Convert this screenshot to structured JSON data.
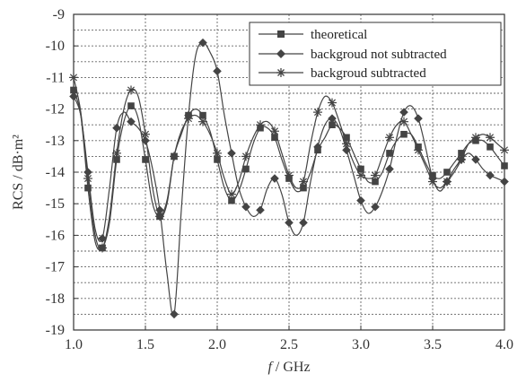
{
  "chart_data": {
    "type": "line",
    "title": "",
    "xlabel_italic": "f",
    "xlabel_rest": " / GHz",
    "ylabel": "RCS / dB·m²",
    "xlim": [
      1.0,
      4.0
    ],
    "ylim": [
      -19,
      -9
    ],
    "x_ticks": [
      "1.0",
      "1.5",
      "2.0",
      "2.5",
      "3.0",
      "3.5",
      "4.0"
    ],
    "y_ticks": [
      "-9",
      "-10",
      "-11",
      "-12",
      "-13",
      "-14",
      "-15",
      "-16",
      "-17",
      "-18",
      "-19"
    ],
    "grid": true,
    "legend_position": "top-right",
    "legend": [
      "theoretical",
      "backgroud not subtracted",
      "backgroud subtracted"
    ],
    "colors": {
      "line": "#444444",
      "frame": "#333333",
      "grid": "#666666"
    },
    "series": [
      {
        "name": "theoretical",
        "marker": "square",
        "x": [
          1.0,
          1.05,
          1.1,
          1.15,
          1.2,
          1.25,
          1.3,
          1.35,
          1.4,
          1.45,
          1.5,
          1.55,
          1.6,
          1.65,
          1.7,
          1.75,
          1.8,
          1.85,
          1.9,
          1.95,
          2.0,
          2.05,
          2.1,
          2.15,
          2.2,
          2.25,
          2.3,
          2.35,
          2.4,
          2.45,
          2.5,
          2.55,
          2.6,
          2.65,
          2.7,
          2.75,
          2.8,
          2.85,
          2.9,
          2.95,
          3.0,
          3.05,
          3.1,
          3.15,
          3.2,
          3.25,
          3.3,
          3.35,
          3.4,
          3.45,
          3.5,
          3.55,
          3.6,
          3.65,
          3.7,
          3.75,
          3.8,
          3.85,
          3.9,
          3.95,
          4.0
        ],
        "y": [
          -11.4,
          -12.2,
          -14.5,
          -16.2,
          -16.4,
          -15.6,
          -13.6,
          -12.4,
          -11.9,
          -12.3,
          -13.6,
          -15.0,
          -15.4,
          -14.9,
          -13.5,
          -12.8,
          -12.2,
          -12.0,
          -12.2,
          -12.7,
          -13.6,
          -14.5,
          -14.9,
          -14.6,
          -13.9,
          -13.1,
          -12.6,
          -12.6,
          -12.9,
          -13.6,
          -14.2,
          -14.6,
          -14.5,
          -14.0,
          -13.3,
          -12.9,
          -12.5,
          -12.6,
          -12.9,
          -13.4,
          -13.9,
          -14.3,
          -14.3,
          -14.0,
          -13.4,
          -13.0,
          -12.8,
          -12.8,
          -13.2,
          -13.7,
          -14.1,
          -14.2,
          -14.0,
          -13.7,
          -13.4,
          -13.1,
          -13.0,
          -13.0,
          -13.2,
          -13.5,
          -13.8
        ]
      },
      {
        "name": "backgroud not subtracted",
        "marker": "diamond",
        "x": [
          1.0,
          1.05,
          1.1,
          1.15,
          1.2,
          1.25,
          1.3,
          1.35,
          1.4,
          1.45,
          1.5,
          1.55,
          1.6,
          1.65,
          1.7,
          1.75,
          1.8,
          1.85,
          1.9,
          1.95,
          2.0,
          2.05,
          2.1,
          2.15,
          2.2,
          2.25,
          2.3,
          2.35,
          2.4,
          2.45,
          2.5,
          2.55,
          2.6,
          2.65,
          2.7,
          2.75,
          2.8,
          2.85,
          2.9,
          2.95,
          3.0,
          3.05,
          3.1,
          3.15,
          3.2,
          3.25,
          3.3,
          3.35,
          3.4,
          3.45,
          3.5,
          3.55,
          3.6,
          3.65,
          3.7,
          3.75,
          3.8,
          3.85,
          3.9,
          3.95,
          4.0
        ],
        "y": [
          -11.6,
          -12.2,
          -14.0,
          -15.8,
          -16.1,
          -14.5,
          -12.6,
          -12.1,
          -12.4,
          -12.6,
          -13.0,
          -13.9,
          -15.2,
          -17.2,
          -18.5,
          -15.2,
          -12.2,
          -10.3,
          -9.9,
          -10.2,
          -10.8,
          -12.2,
          -13.4,
          -14.5,
          -15.1,
          -15.4,
          -15.2,
          -14.5,
          -14.2,
          -14.7,
          -15.6,
          -16.0,
          -15.6,
          -14.3,
          -13.2,
          -12.5,
          -12.3,
          -12.6,
          -13.3,
          -14.1,
          -14.9,
          -15.3,
          -15.1,
          -14.6,
          -13.9,
          -12.9,
          -12.1,
          -11.9,
          -12.3,
          -13.2,
          -14.2,
          -14.6,
          -14.3,
          -13.9,
          -13.6,
          -13.4,
          -13.6,
          -13.9,
          -14.1,
          -14.2,
          -14.3
        ]
      },
      {
        "name": "backgroud subtracted",
        "marker": "star",
        "x": [
          1.0,
          1.05,
          1.1,
          1.15,
          1.2,
          1.25,
          1.3,
          1.35,
          1.4,
          1.45,
          1.5,
          1.55,
          1.6,
          1.65,
          1.7,
          1.75,
          1.8,
          1.85,
          1.9,
          1.95,
          2.0,
          2.05,
          2.1,
          2.15,
          2.2,
          2.25,
          2.3,
          2.35,
          2.4,
          2.45,
          2.5,
          2.55,
          2.6,
          2.65,
          2.7,
          2.75,
          2.8,
          2.85,
          2.9,
          2.95,
          3.0,
          3.05,
          3.1,
          3.15,
          3.2,
          3.25,
          3.3,
          3.35,
          3.4,
          3.45,
          3.5,
          3.55,
          3.6,
          3.65,
          3.7,
          3.75,
          3.8,
          3.85,
          3.9,
          3.95,
          4.0
        ],
        "y": [
          -11.0,
          -12.1,
          -14.2,
          -16.0,
          -16.4,
          -15.4,
          -13.4,
          -12.0,
          -11.4,
          -11.6,
          -12.8,
          -14.5,
          -15.4,
          -15.0,
          -13.5,
          -12.7,
          -12.3,
          -12.2,
          -12.4,
          -12.8,
          -13.4,
          -14.2,
          -14.7,
          -14.3,
          -13.5,
          -12.9,
          -12.5,
          -12.4,
          -12.7,
          -13.4,
          -14.1,
          -14.5,
          -14.3,
          -13.1,
          -12.1,
          -11.6,
          -11.8,
          -12.4,
          -13.1,
          -13.7,
          -14.1,
          -14.2,
          -14.1,
          -13.5,
          -12.9,
          -12.5,
          -12.4,
          -12.8,
          -13.3,
          -13.8,
          -14.3,
          -14.5,
          -14.3,
          -14.0,
          -13.6,
          -13.1,
          -12.9,
          -12.8,
          -12.9,
          -13.1,
          -13.3
        ]
      }
    ]
  }
}
